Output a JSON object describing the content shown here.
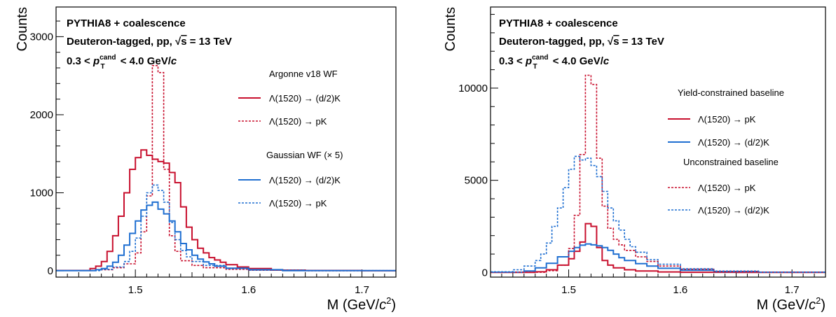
{
  "colors": {
    "red": "#c8102e",
    "blue": "#1f6fd1",
    "axis": "#000000"
  },
  "chart_data": [
    {
      "type": "line",
      "subtype": "histogram",
      "ylabel": "Counts",
      "xlabel_main": "M (GeV/",
      "xlabel_c": "c",
      "xlabel_sup": "2",
      "xlabel_close": ")",
      "xlim": [
        1.43,
        1.73
      ],
      "ylim": [
        -80,
        3380
      ],
      "xticks": [
        1.5,
        1.6,
        1.7
      ],
      "xticklabels": [
        "1.5",
        "1.6",
        "1.7"
      ],
      "yticks": [
        0,
        1000,
        2000,
        3000
      ],
      "yticklabels": [
        "0",
        "1000",
        "2000",
        "3000"
      ],
      "grid": false,
      "annotations": {
        "line1": "PYTHIA8 + coalescence",
        "line2_pre": "Deuteron-tagged, pp, ",
        "line2_sqrt": "√",
        "line2_s": "s",
        "line2_post": " = 13 TeV",
        "line3_pre": "0.3 < ",
        "line3_p": "p",
        "line3_sup": "cand",
        "line3_sub": "T",
        "line3_post": " < 4.0 GeV/",
        "line3_c": "c"
      },
      "legend_groups": [
        {
          "header": "Argonne v18 WF",
          "items": [
            "Λ(1520) → (d/2)K",
            "Λ(1520) → pK"
          ]
        },
        {
          "header": "Gaussian WF (× 5)",
          "items": [
            "Λ(1520) → (d/2)K",
            "Λ(1520) → pK"
          ]
        }
      ],
      "legend_position": "right",
      "series": [
        {
          "color": "red",
          "dash": "solid",
          "edges": [
            1.43,
            1.46,
            1.465,
            1.47,
            1.475,
            1.48,
            1.485,
            1.49,
            1.495,
            1.5,
            1.505,
            1.51,
            1.515,
            1.52,
            1.525,
            1.53,
            1.535,
            1.54,
            1.545,
            1.55,
            1.555,
            1.56,
            1.565,
            1.57,
            1.575,
            1.58,
            1.59,
            1.6,
            1.62,
            1.65,
            1.7,
            1.73
          ],
          "values": [
            5,
            30,
            60,
            120,
            250,
            450,
            700,
            1000,
            1300,
            1450,
            1550,
            1480,
            1430,
            1400,
            1380,
            1260,
            1130,
            820,
            560,
            400,
            290,
            230,
            170,
            140,
            110,
            80,
            50,
            30,
            10,
            5,
            2
          ]
        },
        {
          "color": "red",
          "dash": "dashed",
          "edges": [
            1.43,
            1.47,
            1.48,
            1.49,
            1.5,
            1.505,
            1.51,
            1.515,
            1.52,
            1.525,
            1.53,
            1.535,
            1.54,
            1.55,
            1.56,
            1.58,
            1.6,
            1.65,
            1.73
          ],
          "values": [
            3,
            15,
            40,
            90,
            230,
            500,
            960,
            2630,
            2540,
            1300,
            450,
            250,
            130,
            70,
            40,
            20,
            8,
            2
          ]
        },
        {
          "color": "blue",
          "dash": "solid",
          "edges": [
            1.43,
            1.465,
            1.47,
            1.475,
            1.48,
            1.485,
            1.49,
            1.495,
            1.5,
            1.505,
            1.51,
            1.515,
            1.52,
            1.525,
            1.53,
            1.535,
            1.54,
            1.545,
            1.55,
            1.555,
            1.56,
            1.565,
            1.57,
            1.58,
            1.6,
            1.63,
            1.73
          ],
          "values": [
            3,
            15,
            30,
            60,
            110,
            200,
            330,
            480,
            640,
            780,
            840,
            880,
            790,
            730,
            640,
            500,
            350,
            270,
            200,
            150,
            115,
            90,
            60,
            35,
            15,
            3
          ]
        },
        {
          "color": "blue",
          "dash": "dashed",
          "edges": [
            1.43,
            1.47,
            1.48,
            1.49,
            1.495,
            1.5,
            1.505,
            1.51,
            1.515,
            1.52,
            1.525,
            1.53,
            1.535,
            1.54,
            1.545,
            1.55,
            1.56,
            1.58,
            1.6,
            1.65,
            1.73
          ],
          "values": [
            3,
            20,
            50,
            120,
            250,
            420,
            700,
            1000,
            1100,
            1030,
            880,
            620,
            400,
            260,
            180,
            120,
            70,
            30,
            10,
            3
          ]
        }
      ]
    },
    {
      "type": "line",
      "subtype": "histogram",
      "ylabel": "Counts",
      "xlabel_main": "M (GeV/",
      "xlabel_c": "c",
      "xlabel_sup": "2",
      "xlabel_close": ")",
      "xlim": [
        1.43,
        1.73
      ],
      "ylim": [
        -250,
        14400
      ],
      "xticks": [
        1.5,
        1.6,
        1.7
      ],
      "xticklabels": [
        "1.5",
        "1.6",
        "1.7"
      ],
      "yticks": [
        0,
        5000,
        10000
      ],
      "yticklabels": [
        "0",
        "5000",
        "10000"
      ],
      "grid": false,
      "annotations": {
        "line1": "PYTHIA8 + coalescence",
        "line2_pre": "Deuteron-tagged, pp, ",
        "line2_sqrt": "√",
        "line2_s": "s",
        "line2_post": " = 13 TeV",
        "line3_pre": "0.3 < ",
        "line3_p": "p",
        "line3_sup": "cand",
        "line3_sub": "T",
        "line3_post": " < 4.0 GeV/",
        "line3_c": "c"
      },
      "legend_groups": [
        {
          "header": "Yield-constrained baseline",
          "items": [
            "Λ(1520) → pK",
            "Λ(1520) → (d/2)K"
          ]
        },
        {
          "header": "Unconstrained baseline",
          "items": [
            "Λ(1520) → pK",
            "Λ(1520) → (d/2)K"
          ]
        }
      ],
      "legend_position": "right",
      "series": [
        {
          "color": "red",
          "dash": "solid",
          "edges": [
            1.43,
            1.47,
            1.48,
            1.49,
            1.5,
            1.505,
            1.51,
            1.515,
            1.52,
            1.525,
            1.53,
            1.535,
            1.54,
            1.55,
            1.56,
            1.58,
            1.6,
            1.65,
            1.73
          ],
          "values": [
            3,
            40,
            150,
            400,
            750,
            1150,
            1650,
            2650,
            2500,
            1350,
            650,
            400,
            250,
            150,
            80,
            30,
            10,
            3
          ]
        },
        {
          "color": "blue",
          "dash": "solid",
          "edges": [
            1.43,
            1.46,
            1.47,
            1.48,
            1.49,
            1.5,
            1.505,
            1.51,
            1.515,
            1.52,
            1.525,
            1.53,
            1.535,
            1.54,
            1.545,
            1.55,
            1.56,
            1.57,
            1.58,
            1.6,
            1.63,
            1.67,
            1.73
          ],
          "values": [
            15,
            80,
            250,
            500,
            850,
            1150,
            1350,
            1480,
            1550,
            1500,
            1450,
            1350,
            1200,
            1000,
            800,
            650,
            480,
            350,
            230,
            120,
            50,
            15
          ]
        },
        {
          "color": "red",
          "dash": "dashed",
          "edges": [
            1.43,
            1.48,
            1.49,
            1.5,
            1.505,
            1.51,
            1.515,
            1.52,
            1.525,
            1.53,
            1.535,
            1.54,
            1.545,
            1.55,
            1.56,
            1.57,
            1.58,
            1.6,
            1.63,
            1.67,
            1.73
          ],
          "values": [
            10,
            100,
            400,
            1300,
            3100,
            6400,
            10700,
            10200,
            6200,
            3600,
            2400,
            1800,
            1500,
            1200,
            850,
            600,
            350,
            180,
            60,
            15
          ]
        },
        {
          "color": "blue",
          "dash": "dashed",
          "edges": [
            1.43,
            1.45,
            1.46,
            1.47,
            1.475,
            1.48,
            1.485,
            1.49,
            1.495,
            1.5,
            1.505,
            1.51,
            1.515,
            1.52,
            1.525,
            1.53,
            1.535,
            1.54,
            1.545,
            1.55,
            1.555,
            1.56,
            1.57,
            1.58,
            1.6,
            1.63,
            1.67,
            1.73
          ],
          "values": [
            40,
            150,
            350,
            650,
            1000,
            1600,
            2500,
            3500,
            4600,
            5600,
            6300,
            6100,
            6200,
            5800,
            5200,
            4400,
            3500,
            2800,
            2300,
            1800,
            1400,
            1100,
            700,
            450,
            200,
            80,
            20
          ]
        }
      ]
    }
  ]
}
